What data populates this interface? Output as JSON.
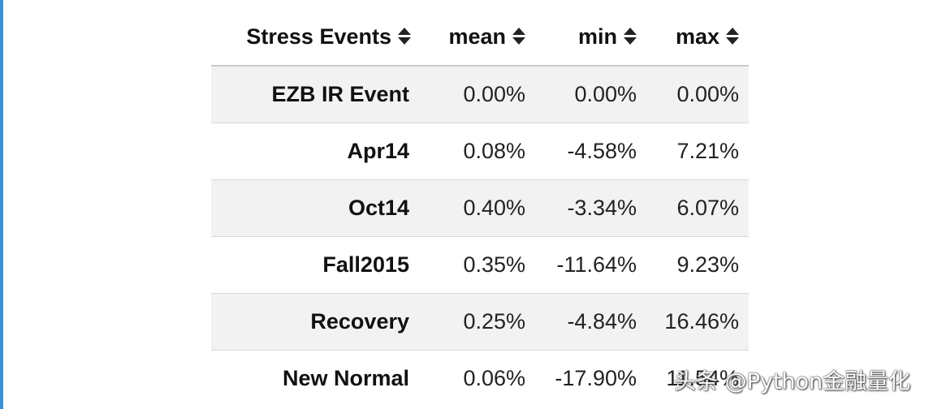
{
  "table": {
    "columns": [
      {
        "label": "Stress Events",
        "sortable": true
      },
      {
        "label": "mean",
        "sortable": true
      },
      {
        "label": "min",
        "sortable": true
      },
      {
        "label": "max",
        "sortable": true
      }
    ],
    "rows": [
      {
        "event": "EZB IR Event",
        "mean": "0.00%",
        "min": "0.00%",
        "max": "0.00%"
      },
      {
        "event": "Apr14",
        "mean": "0.08%",
        "min": "-4.58%",
        "max": "7.21%"
      },
      {
        "event": "Oct14",
        "mean": "0.40%",
        "min": "-3.34%",
        "max": "6.07%"
      },
      {
        "event": "Fall2015",
        "mean": "0.35%",
        "min": "-11.64%",
        "max": "9.23%"
      },
      {
        "event": "Recovery",
        "mean": "0.25%",
        "min": "-4.84%",
        "max": "16.46%"
      },
      {
        "event": "New Normal",
        "mean": "0.06%",
        "min": "-17.90%",
        "max": "11.54%"
      }
    ]
  },
  "watermark": "头条 @Python金融量化",
  "colors": {
    "accent": "#3d8fd6",
    "stripe": "#f2f2f2",
    "border": "#c8ccd2",
    "text": "#111111"
  },
  "icons": {
    "sort": "sort-arrows-icon"
  }
}
